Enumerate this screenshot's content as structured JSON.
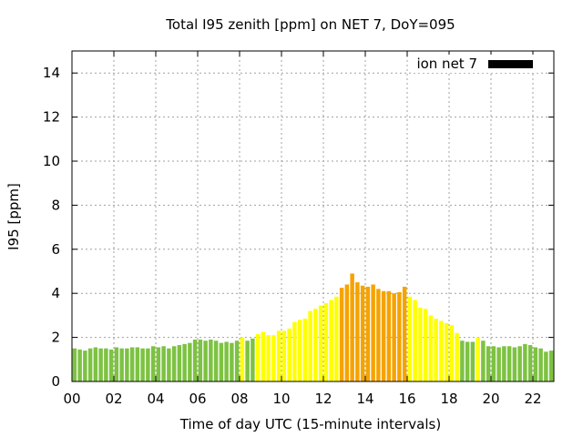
{
  "chart_data": {
    "type": "bar",
    "title": "Total I95 zenith [ppm] on NET 7, DoY=095",
    "xlabel": "Time of day UTC (15-minute intervals)",
    "ylabel": "I95 [ppm]",
    "xlim": [
      0,
      23
    ],
    "ylim": [
      0,
      15
    ],
    "xticks": [
      "00",
      "02",
      "04",
      "06",
      "08",
      "10",
      "12",
      "14",
      "16",
      "18",
      "20",
      "22"
    ],
    "yticks": [
      "0",
      "2",
      "4",
      "6",
      "8",
      "10",
      "12",
      "14"
    ],
    "grid": true,
    "legend": {
      "label": "ion net 7",
      "placement": "top-right",
      "color": "#000000"
    },
    "bin_hours": 0.25,
    "colors": {
      "green": "#7dc242",
      "yellow": "#ffff00",
      "orange": "#f5a300"
    },
    "values": [
      1.5,
      1.45,
      1.4,
      1.5,
      1.55,
      1.5,
      1.5,
      1.45,
      1.55,
      1.5,
      1.5,
      1.55,
      1.55,
      1.5,
      1.5,
      1.6,
      1.55,
      1.6,
      1.5,
      1.6,
      1.65,
      1.7,
      1.75,
      1.9,
      1.9,
      1.85,
      1.9,
      1.85,
      1.75,
      1.8,
      1.75,
      1.85,
      2.0,
      1.85,
      1.95,
      2.15,
      2.25,
      2.1,
      2.1,
      2.3,
      2.3,
      2.4,
      2.7,
      2.8,
      2.85,
      3.2,
      3.3,
      3.45,
      3.55,
      3.7,
      3.85,
      4.25,
      4.4,
      4.9,
      4.5,
      4.35,
      4.3,
      4.4,
      4.2,
      4.1,
      4.1,
      4.0,
      4.05,
      4.3,
      3.85,
      3.7,
      3.35,
      3.3,
      3.0,
      2.85,
      2.75,
      2.65,
      2.55,
      2.2,
      1.85,
      1.8,
      1.8,
      2.0,
      1.85,
      1.6,
      1.6,
      1.55,
      1.6,
      1.6,
      1.55,
      1.6,
      1.7,
      1.65,
      1.55,
      1.5,
      1.35,
      1.4
    ],
    "color_levels": [
      "green",
      "green",
      "green",
      "green",
      "green",
      "green",
      "green",
      "green",
      "green",
      "green",
      "green",
      "green",
      "green",
      "green",
      "green",
      "green",
      "green",
      "green",
      "green",
      "green",
      "green",
      "green",
      "green",
      "green",
      "green",
      "green",
      "green",
      "green",
      "green",
      "green",
      "green",
      "green",
      "yellow",
      "green",
      "green",
      "yellow",
      "yellow",
      "yellow",
      "yellow",
      "yellow",
      "yellow",
      "yellow",
      "yellow",
      "yellow",
      "yellow",
      "yellow",
      "yellow",
      "yellow",
      "yellow",
      "yellow",
      "yellow",
      "orange",
      "orange",
      "orange",
      "orange",
      "orange",
      "orange",
      "orange",
      "orange",
      "orange",
      "orange",
      "orange",
      "orange",
      "orange",
      "yellow",
      "yellow",
      "yellow",
      "yellow",
      "yellow",
      "yellow",
      "yellow",
      "yellow",
      "yellow",
      "yellow",
      "green",
      "green",
      "green",
      "yellow",
      "green",
      "green",
      "green",
      "green",
      "green",
      "green",
      "green",
      "green",
      "green",
      "green",
      "green",
      "green",
      "green",
      "green"
    ]
  }
}
